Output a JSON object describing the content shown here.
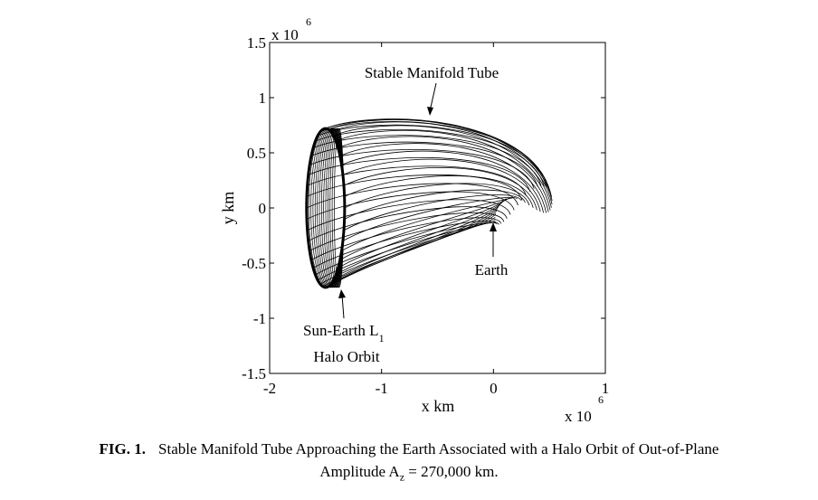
{
  "chart_data": {
    "type": "line",
    "xlabel": "x km",
    "ylabel": "y km",
    "x_exponent_label": "x 10",
    "x_exponent_power": "6",
    "y_exponent_label": "x 10",
    "y_exponent_power": "6",
    "xlim": [
      -2,
      1
    ],
    "ylim": [
      -1.5,
      1.5
    ],
    "xticks": [
      -2,
      -1,
      0,
      1
    ],
    "xtick_labels": [
      "-2",
      "-1",
      "0",
      "1"
    ],
    "yticks": [
      -1.5,
      -1,
      -0.5,
      0,
      0.5,
      1,
      1.5
    ],
    "ytick_labels": [
      "-1.5",
      "-1",
      "-0.5",
      "0",
      "0.5",
      "1",
      "1.5"
    ],
    "grid": false,
    "halo_orbit": {
      "center_x": -1.5,
      "center_y": 0.0,
      "semi_x": 0.17,
      "semi_y": 0.72
    },
    "earth": {
      "x": 0.0,
      "y": 0.0
    },
    "tube_envelope": {
      "upper": [
        [
          -1.36,
          0.72
        ],
        [
          -1.1,
          0.8
        ],
        [
          -0.6,
          0.84
        ],
        [
          -0.2,
          0.76
        ],
        [
          0.3,
          0.5
        ],
        [
          0.52,
          0.15
        ]
      ],
      "lower": [
        [
          -1.36,
          -0.72
        ],
        [
          -1.1,
          -0.5
        ],
        [
          -0.6,
          -0.22
        ],
        [
          -0.2,
          -0.05
        ],
        [
          0.0,
          0.0
        ],
        [
          0.1,
          -0.1
        ],
        [
          0.3,
          -0.05
        ]
      ]
    },
    "annotations": [
      {
        "text": "Stable Manifold Tube",
        "points_to": [
          -0.6,
          0.84
        ]
      },
      {
        "text": "Earth",
        "points_to": [
          0.0,
          0.0
        ]
      },
      {
        "text": "Sun-Earth L",
        "subscript": "1",
        "line2": "Halo Orbit",
        "points_to": [
          -1.35,
          -0.72
        ]
      }
    ]
  },
  "caption": {
    "label": "FIG. 1.",
    "line1": "Stable Manifold Tube Approaching the Earth Associated with a Halo Orbit of Out-of-Plane",
    "line2_prefix": "Amplitude  A",
    "line2_sub": "z",
    "line2_suffix": " = 270,000 km."
  }
}
